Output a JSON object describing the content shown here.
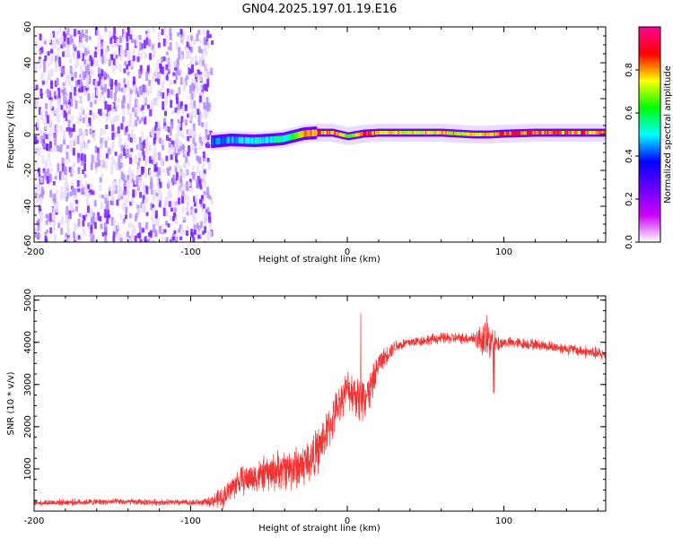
{
  "title": "GN04.2025.197.01.19.E16",
  "chart_data": [
    {
      "type": "heatmap",
      "xlabel": "Height of straight line (km)",
      "ylabel": "Frequency (Hz)",
      "xlim": [
        -200,
        165
      ],
      "ylim": [
        -60,
        60
      ],
      "xticks": [
        -200,
        -100,
        0,
        100
      ],
      "yticks": [
        -60,
        -40,
        -20,
        0,
        20,
        40,
        60
      ],
      "colorbar": {
        "label": "Normalized spectral amplitude",
        "range": [
          0,
          1
        ],
        "ticks": [
          0.0,
          0.2,
          0.4,
          0.6,
          0.8
        ],
        "colors": [
          "#ffffff",
          "#cc00ff",
          "#6a00ff",
          "#0000ff",
          "#00ffff",
          "#00ff00",
          "#ffff00",
          "#ff0000",
          "#ff0099"
        ]
      },
      "noise_region_x": [
        -200,
        -87
      ],
      "band_start_x": -87,
      "ridge": {
        "x": [
          -87,
          -75,
          -60,
          -50,
          -42,
          -35,
          -28,
          -20,
          -10,
          0,
          10,
          20,
          40,
          60,
          80,
          90,
          100,
          120,
          140,
          165
        ],
        "freq": [
          -4,
          -3,
          -3.5,
          -3,
          -2.5,
          -1,
          0.5,
          1,
          1,
          -1,
          0.5,
          1,
          1,
          1,
          0,
          0,
          0.5,
          1,
          1,
          1
        ],
        "amplitude": [
          0.45,
          0.5,
          0.55,
          0.55,
          0.6,
          0.7,
          0.85,
          0.9,
          0.9,
          0.75,
          0.95,
          0.85,
          0.85,
          0.85,
          0.8,
          0.9,
          0.95,
          0.95,
          0.9,
          0.85
        ]
      }
    },
    {
      "type": "line",
      "xlabel": "Height of straight line (km)",
      "ylabel": "SNR (10 * v/v)",
      "xlim": [
        -200,
        165
      ],
      "ylim": [
        0,
        5100
      ],
      "xticks": [
        -200,
        -100,
        0,
        100
      ],
      "yticks": [
        1000,
        2000,
        3000,
        4000,
        5000
      ],
      "color": "#ee3333",
      "envelope": {
        "x": [
          -200,
          -150,
          -100,
          -90,
          -80,
          -70,
          -60,
          -50,
          -40,
          -30,
          -20,
          -10,
          -5,
          0,
          5,
          10,
          15,
          20,
          30,
          40,
          60,
          80,
          90,
          95,
          100,
          120,
          140,
          165
        ],
        "mean": [
          200,
          220,
          200,
          210,
          300,
          700,
          800,
          900,
          1000,
          1050,
          1350,
          2100,
          2600,
          2900,
          2800,
          2600,
          2900,
          3500,
          3900,
          4000,
          4100,
          4100,
          4050,
          3950,
          4000,
          3950,
          3850,
          3700
        ],
        "spread": [
          70,
          70,
          70,
          80,
          250,
          300,
          350,
          400,
          450,
          500,
          500,
          450,
          400,
          400,
          500,
          600,
          400,
          250,
          150,
          120,
          120,
          130,
          500,
          250,
          120,
          120,
          120,
          150
        ]
      }
    }
  ]
}
